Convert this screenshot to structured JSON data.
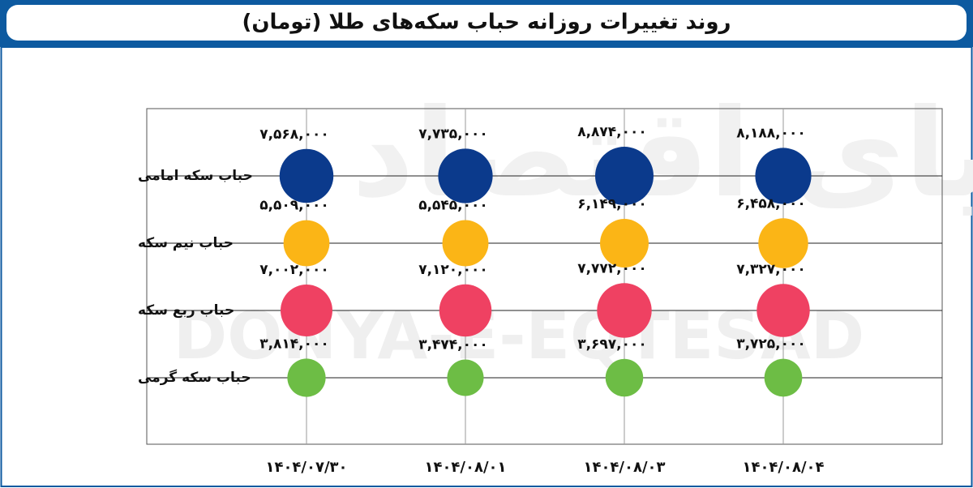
{
  "chart_data": {
    "type": "bubble",
    "title": "روند تغییرات روزانه حباب سکه‌های طلا (تومان)",
    "watermark": "DONYA-E-EQTESAD",
    "watermark_fa": "دنیای اقتصاد",
    "categories": [
      "۱۴۰۴/۰۷/۳۰",
      "۱۴۰۴/۰۸/۰۱",
      "۱۴۰۴/۰۸/۰۳",
      "۱۴۰۴/۰۸/۰۴"
    ],
    "series": [
      {
        "name": "حباب سکه امامی",
        "color": "#0b3a8c",
        "values": [
          7568000,
          7735000,
          8874000,
          8188000
        ],
        "value_labels": [
          "۷,۵۶۸,۰۰۰",
          "۷,۷۳۵,۰۰۰",
          "۸,۸۷۴,۰۰۰",
          "۸,۱۸۸,۰۰۰"
        ]
      },
      {
        "name": "حباب نیم سکه",
        "color": "#fbb516",
        "values": [
          5509000,
          5545000,
          6149000,
          6458000
        ],
        "value_labels": [
          "۵,۵۰۹,۰۰۰",
          "۵,۵۴۵,۰۰۰",
          "۶,۱۴۹,۰۰۰",
          "۶,۴۵۸,۰۰۰"
        ]
      },
      {
        "name": "حباب ربع سکه",
        "color": "#ef4162",
        "values": [
          7002000,
          7120000,
          7772000,
          7327000
        ],
        "value_labels": [
          "۷,۰۰۲,۰۰۰",
          "۷,۱۲۰,۰۰۰",
          "۷,۷۷۲,۰۰۰",
          "۷,۳۲۷,۰۰۰"
        ]
      },
      {
        "name": "حباب سکه گرمی",
        "color": "#6dbd45",
        "values": [
          3814000,
          3474000,
          3697000,
          3725000
        ],
        "value_labels": [
          "۳,۸۱۴,۰۰۰",
          "۳,۴۷۴,۰۰۰",
          "۳,۶۹۷,۰۰۰",
          "۳,۷۲۵,۰۰۰"
        ]
      }
    ]
  }
}
